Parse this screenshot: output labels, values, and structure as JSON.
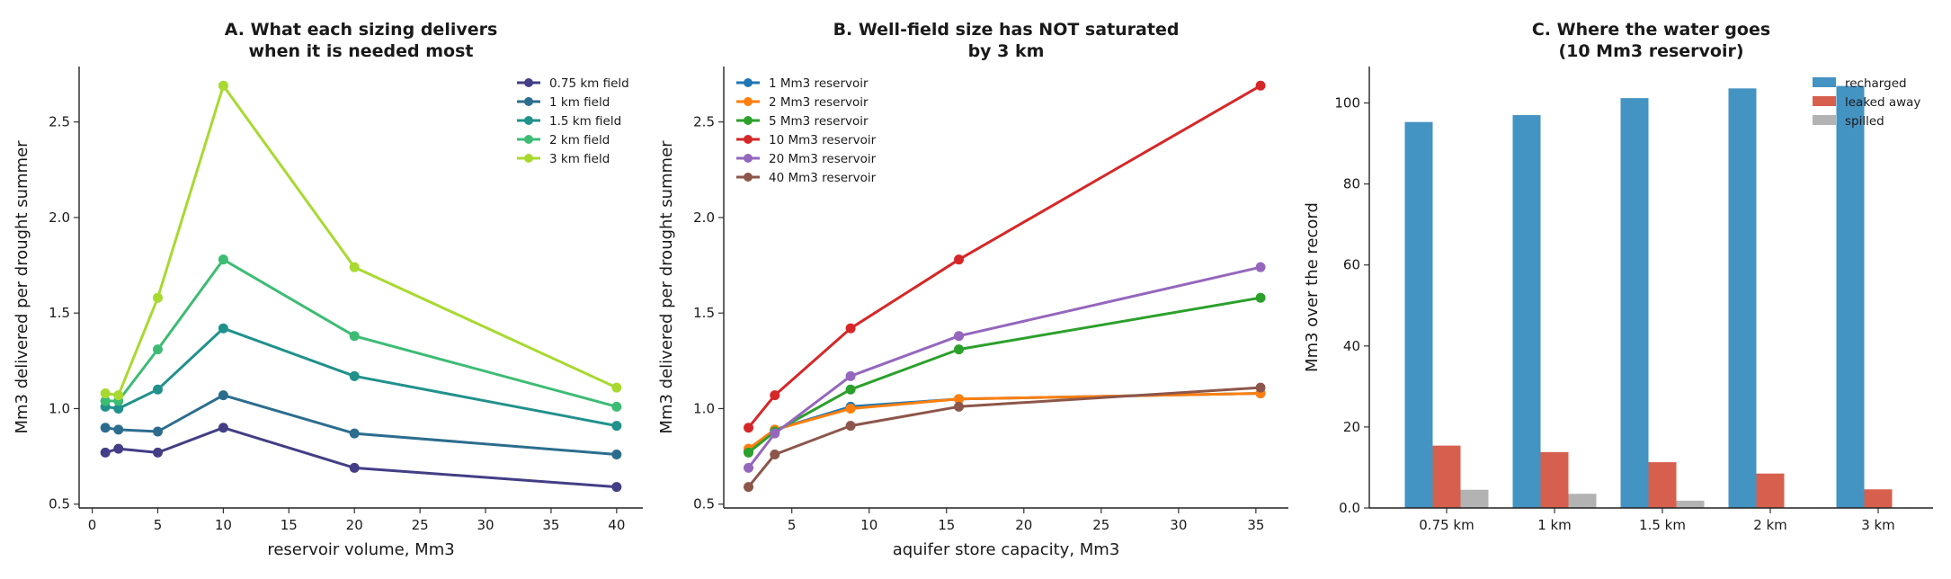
{
  "chart_data": [
    {
      "type": "line",
      "title": [
        "A. What each sizing delivers",
        "when it is needed most"
      ],
      "xlabel": "reservoir volume, Mm3",
      "ylabel": "Mm3 delivered per drought summer",
      "xlim": [
        -1,
        42
      ],
      "ylim": [
        0.48,
        2.79
      ],
      "xticks": [
        0,
        5,
        10,
        15,
        20,
        25,
        30,
        35,
        40
      ],
      "yticks": [
        0.5,
        1.0,
        1.5,
        2.0,
        2.5
      ],
      "legend_position": "top-right",
      "x": [
        1,
        2,
        5,
        10,
        20,
        40
      ],
      "series": [
        {
          "name": "0.75 km field",
          "color": "#433e85",
          "values": [
            0.77,
            0.79,
            0.77,
            0.9,
            0.69,
            0.59
          ]
        },
        {
          "name": "1 km field",
          "color": "#2c6d8e",
          "values": [
            0.9,
            0.89,
            0.88,
            1.07,
            0.87,
            0.76
          ]
        },
        {
          "name": "1.5 km field",
          "color": "#21918c",
          "values": [
            1.01,
            1.0,
            1.1,
            1.42,
            1.17,
            0.91
          ]
        },
        {
          "name": "2 km field",
          "color": "#3dbc74",
          "values": [
            1.04,
            1.04,
            1.31,
            1.78,
            1.38,
            1.01
          ]
        },
        {
          "name": "3 km field",
          "color": "#a8d930",
          "values": [
            1.08,
            1.07,
            1.58,
            2.69,
            1.74,
            1.11
          ]
        }
      ]
    },
    {
      "type": "line",
      "title": [
        "B. Well-field size has NOT saturated",
        "by 3 km"
      ],
      "xlabel": "aquifer store capacity, Mm3",
      "ylabel": "Mm3 delivered per drought summer",
      "xlim": [
        0.6,
        37.1
      ],
      "ylim": [
        0.48,
        2.79
      ],
      "xticks": [
        5,
        10,
        15,
        20,
        25,
        30,
        35
      ],
      "yticks": [
        0.5,
        1.0,
        1.5,
        2.0,
        2.5
      ],
      "legend_position": "top-left",
      "x": [
        2.2,
        3.9,
        8.8,
        15.8,
        35.3
      ],
      "series": [
        {
          "name": "1 Mm3 reservoir",
          "color": "#1f77b4",
          "values": [
            0.78,
            0.89,
            1.01,
            1.05,
            1.08
          ]
        },
        {
          "name": "2 Mm3 reservoir",
          "color": "#ff7f0e",
          "values": [
            0.79,
            0.89,
            1.0,
            1.05,
            1.08
          ]
        },
        {
          "name": "5 Mm3 reservoir",
          "color": "#2ca02c",
          "values": [
            0.77,
            0.88,
            1.1,
            1.31,
            1.58
          ]
        },
        {
          "name": "10 Mm3 reservoir",
          "color": "#d62728",
          "values": [
            0.9,
            1.07,
            1.42,
            1.78,
            2.69
          ]
        },
        {
          "name": "20 Mm3 reservoir",
          "color": "#9467bd",
          "values": [
            0.69,
            0.87,
            1.17,
            1.38,
            1.74
          ]
        },
        {
          "name": "40 Mm3 reservoir",
          "color": "#8c564b",
          "values": [
            0.59,
            0.76,
            0.91,
            1.01,
            1.11
          ]
        }
      ]
    },
    {
      "type": "bar",
      "title": [
        "C. Where the water goes",
        "(10 Mm3 reservoir)"
      ],
      "xlabel": "",
      "ylabel": "Mm3 over the record",
      "ylim": [
        0,
        109
      ],
      "yticks": [
        0,
        20,
        40,
        60,
        80,
        100
      ],
      "legend_position": "top-right",
      "categories": [
        "0.75 km",
        "1 km",
        "1.5 km",
        "2 km",
        "3 km"
      ],
      "series": [
        {
          "name": "recharged",
          "color": "#4393c3",
          "values": [
            95.3,
            97.0,
            101.2,
            103.6,
            104.2
          ]
        },
        {
          "name": "leaked away",
          "color": "#d6604d",
          "values": [
            15.4,
            13.8,
            11.3,
            8.5,
            4.6
          ]
        },
        {
          "name": "spilled",
          "color": "#b3b3b3",
          "values": [
            4.5,
            3.5,
            1.8,
            0,
            0
          ]
        }
      ]
    }
  ]
}
